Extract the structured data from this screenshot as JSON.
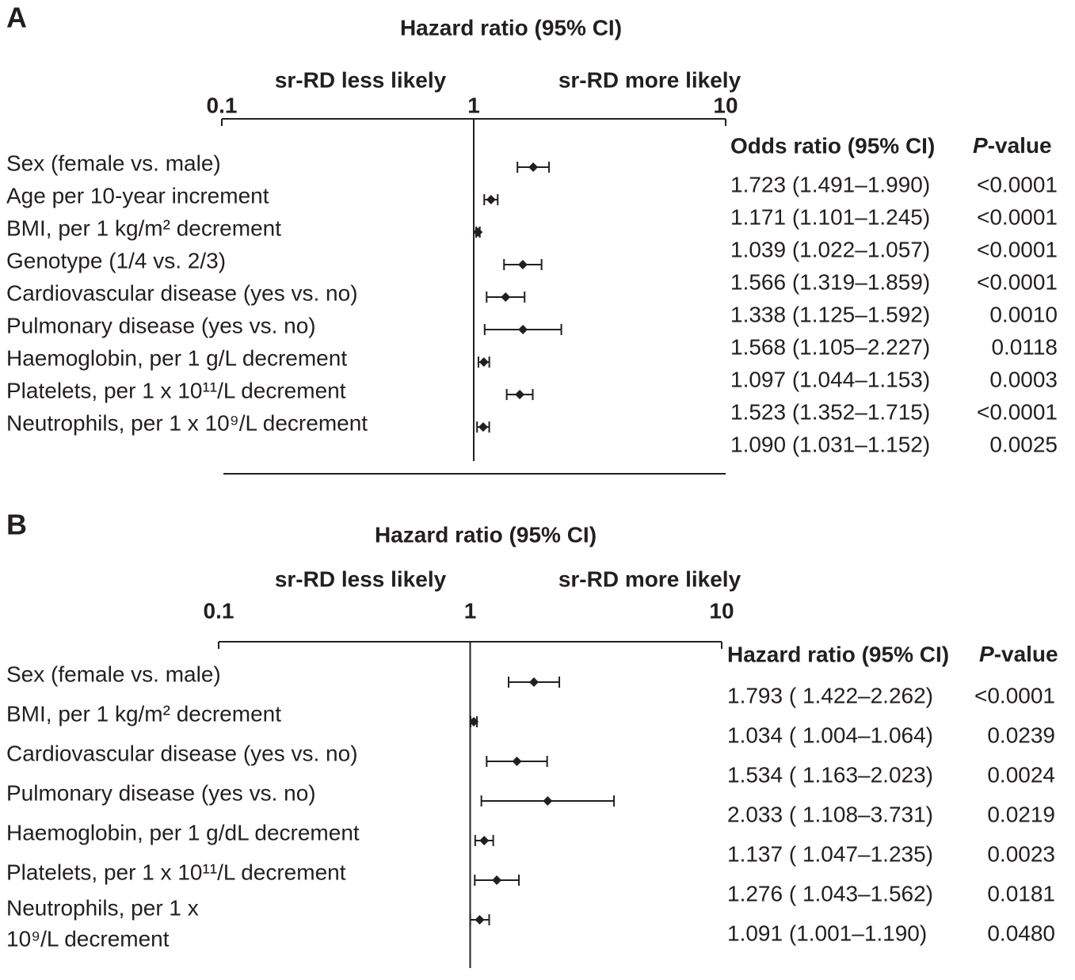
{
  "chart_data": [
    {
      "type": "forest",
      "panel": "A",
      "title": "Hazard ratio (95% CI)",
      "direction_labels": [
        "sr-RD less likely",
        "sr-RD more likely"
      ],
      "xlim": [
        0.1,
        10
      ],
      "xticks": [
        0.1,
        1,
        10
      ],
      "log_x": true,
      "color": "#231f20",
      "categories": [
        "Sex (female vs. male)",
        "Age per 10-year increment",
        "BMI, per 1 kg/m² decrement",
        "Genotype (1/4 vs. 2/3)",
        "Cardiovascular disease (yes vs. no)",
        "Pulmonary disease (yes vs. no)",
        "Haemoglobin, per 1 g/L decrement",
        "Platelets, per 1 x 10¹¹/L decrement",
        "Neutrophils, per 1 x 10⁹/L decrement"
      ],
      "values": [
        1.723,
        1.171,
        1.039,
        1.566,
        1.338,
        1.568,
        1.097,
        1.523,
        1.09
      ],
      "lower": [
        1.491,
        1.101,
        1.022,
        1.319,
        1.125,
        1.105,
        1.044,
        1.352,
        1.031
      ],
      "upper": [
        1.99,
        1.245,
        1.057,
        1.859,
        1.592,
        2.227,
        1.153,
        1.715,
        1.152
      ],
      "value_labels": [
        "1.723 (1.491–1.990)",
        "1.171 (1.101–1.245)",
        "1.039 (1.022–1.057)",
        "1.566 (1.319–1.859)",
        "1.338 (1.125–1.592)",
        "1.568 (1.105–2.227)",
        "1.097 (1.044–1.153)",
        "1.523 (1.352–1.715)",
        "1.090 (1.031–1.152)"
      ],
      "p_values": [
        "<0.0001",
        "<0.0001",
        "<0.0001",
        "<0.0001",
        "0.0010",
        "0.0118",
        "0.0003",
        "<0.0001",
        "0.0025"
      ],
      "column_headers": [
        "Odds ratio (95% CI)",
        "P-value"
      ]
    },
    {
      "type": "forest",
      "panel": "B",
      "title": "Hazard ratio (95% CI)",
      "direction_labels": [
        "sr-RD less likely",
        "sr-RD more likely"
      ],
      "xlim": [
        0.1,
        10
      ],
      "xticks": [
        0.1,
        1,
        10
      ],
      "log_x": true,
      "color": "#231f20",
      "categories": [
        "Sex (female vs. male)",
        "BMI, per 1 kg/m² decrement",
        "Cardiovascular disease (yes vs. no)",
        "Pulmonary disease (yes vs. no)",
        "Haemoglobin, per 1 g/dL decrement",
        "Platelets, per 1 x 10¹¹/L decrement",
        [
          "Neutrophils, per 1 x",
          "10⁹/L decrement"
        ]
      ],
      "values": [
        1.793,
        1.034,
        1.534,
        2.033,
        1.137,
        1.276,
        1.091
      ],
      "lower": [
        1.422,
        1.004,
        1.163,
        1.108,
        1.047,
        1.043,
        1.001
      ],
      "upper": [
        2.262,
        1.064,
        2.023,
        3.731,
        1.235,
        1.562,
        1.19
      ],
      "value_labels": [
        "1.793 ( 1.422–2.262)",
        "1.034 ( 1.004–1.064)",
        "1.534 ( 1.163–2.023)",
        "2.033 ( 1.108–3.731)",
        "1.137 ( 1.047–1.235)",
        "1.276 ( 1.043–1.562)",
        "1.091 (1.001–1.190)"
      ],
      "p_values": [
        "<0.0001",
        "0.0239",
        "0.0024",
        "0.0219",
        "0.0023",
        "0.0181",
        "0.0480"
      ],
      "column_headers": [
        "Hazard ratio (95% CI)",
        "P-value"
      ]
    }
  ]
}
